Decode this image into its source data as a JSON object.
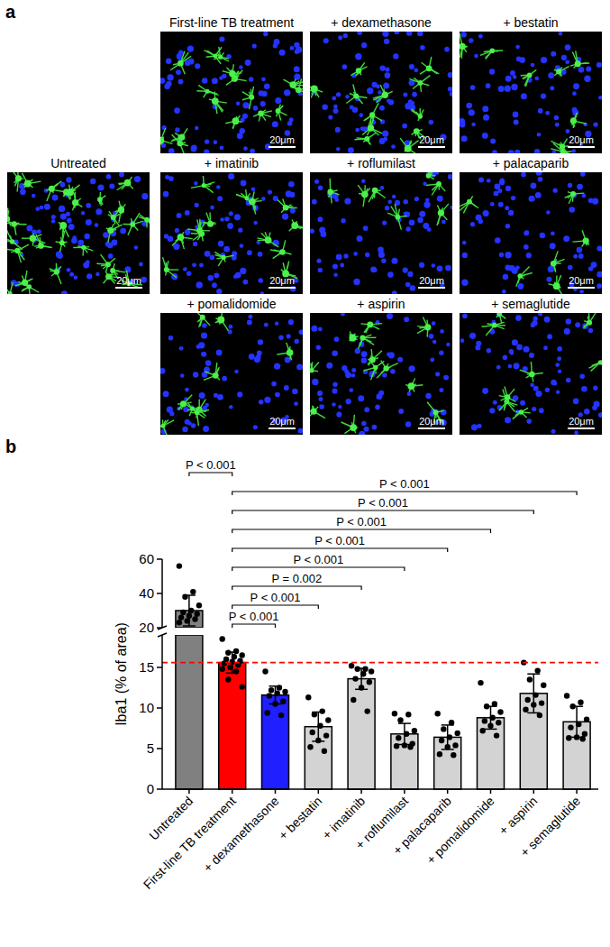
{
  "panel_a": {
    "label": "a",
    "scale_bar": "20μm",
    "images": [
      "Untreated",
      "First-line TB treatment",
      "+ dexamethasone",
      "+ bestatin",
      "+ imatinib",
      "+ roflumilast",
      "+ palacaparib",
      "+ pomalidomide",
      "+ aspirin",
      "+ semaglutide"
    ]
  },
  "chart_data": {
    "type": "bar",
    "panel_label": "b",
    "y_label": "Iba1 (% of area)",
    "categories": [
      "Untreated",
      "First-line TB treatment",
      "+ dexamethasone",
      "+ bestatin",
      "+ imatinib",
      "+ roflumilast",
      "+ palacaparib",
      "+ pomalidomide",
      "+ aspirin",
      "+ semaglutide"
    ],
    "values": [
      30,
      15.6,
      11.6,
      7.7,
      13.6,
      6.8,
      6.4,
      8.8,
      11.8,
      8.3
    ],
    "errors": [
      9,
      1.3,
      1.1,
      1.8,
      1.3,
      1.3,
      1.5,
      1.4,
      2.4,
      1.9
    ],
    "points": [
      [
        56,
        41,
        38,
        33,
        30,
        29,
        28,
        27,
        26,
        25,
        24,
        23
      ],
      [
        18.5,
        17,
        16.8,
        16.5,
        16.3,
        16,
        15.8,
        15.7,
        15.5,
        15.3,
        15,
        14.8,
        14.5,
        13.5,
        12.6
      ],
      [
        14.5,
        12.5,
        12.2,
        12,
        11.8,
        11.5,
        10.8,
        10.5,
        9.4,
        9.1
      ],
      [
        11.3,
        9.6,
        9.2,
        8.5,
        7.8,
        7,
        6.6,
        6,
        5.2,
        4.7
      ],
      [
        15.2,
        14.8,
        14.8,
        14.5,
        14.2,
        13.6,
        13.2,
        12.5,
        11,
        9.6
      ],
      [
        9.3,
        9.2,
        8.5,
        7.2,
        6.8,
        6.3,
        5.6,
        5.4,
        5.3,
        5.2
      ],
      [
        9.3,
        8.2,
        7.4,
        6.9,
        6.4,
        6,
        5.4,
        5.2,
        4.3,
        4.2
      ],
      [
        13.1,
        10.5,
        10.2,
        9.5,
        8.8,
        8.4,
        8.2,
        7.8,
        7.2,
        6.6
      ],
      [
        15.6,
        14.6,
        13.5,
        12.8,
        11.6,
        11,
        10.6,
        10.4,
        9.8,
        9.1
      ],
      [
        11.5,
        10.7,
        10.2,
        8.6,
        8,
        7.6,
        6.8,
        6.4,
        6.3,
        6.2
      ]
    ],
    "colors": [
      "#808080",
      "#ff0000",
      "#1f1fff",
      "#d3d3d3",
      "#d3d3d3",
      "#d3d3d3",
      "#d3d3d3",
      "#d3d3d3",
      "#d3d3d3",
      "#d3d3d3"
    ],
    "ylim": [
      0,
      60
    ],
    "yticks": [
      0,
      5,
      10,
      15,
      20,
      40,
      60
    ],
    "y_break": [
      19,
      20
    ],
    "reference_line": {
      "value": 15.6,
      "color": "#ff0000",
      "line_style": "dashed"
    },
    "comparisons": [
      {
        "from": 1,
        "to": 2,
        "label": "P < 0.001"
      },
      {
        "from": 1,
        "to": 3,
        "label": "P < 0.001"
      },
      {
        "from": 1,
        "to": 4,
        "label": "P = 0.002"
      },
      {
        "from": 1,
        "to": 5,
        "label": "P < 0.001"
      },
      {
        "from": 1,
        "to": 6,
        "label": "P < 0.001"
      },
      {
        "from": 1,
        "to": 7,
        "label": "P < 0.001"
      },
      {
        "from": 1,
        "to": 8,
        "label": "P < 0.001"
      },
      {
        "from": 1,
        "to": 9,
        "label": "P < 0.001"
      },
      {
        "from": 0,
        "to": 1,
        "label": "P < 0.001"
      }
    ]
  }
}
